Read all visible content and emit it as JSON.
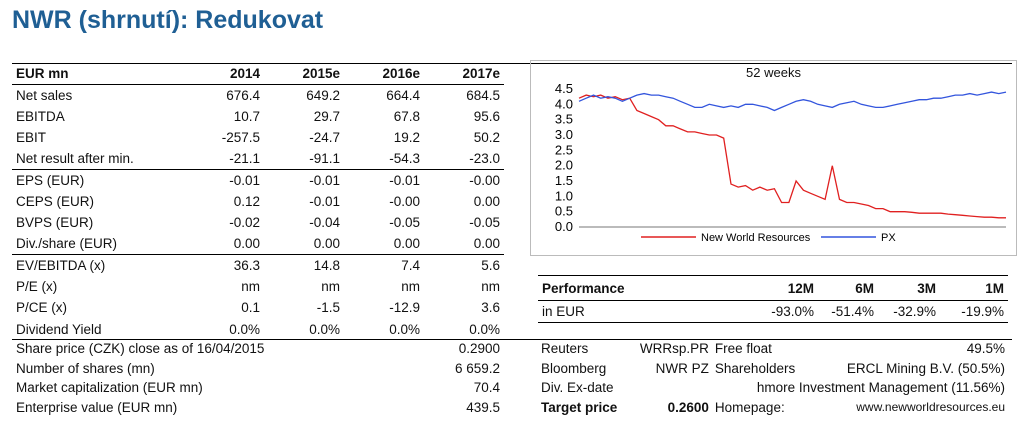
{
  "title": "NWR (shrnutí): Redukovat",
  "financials": {
    "headers": [
      "EUR mn",
      "2014",
      "2015e",
      "2016e",
      "2017e"
    ],
    "rows": [
      {
        "label": "Net sales",
        "values": [
          "676.4",
          "649.2",
          "664.4",
          "684.5"
        ],
        "sep": false
      },
      {
        "label": "EBITDA",
        "values": [
          "10.7",
          "29.7",
          "67.8",
          "95.6"
        ],
        "sep": false
      },
      {
        "label": "EBIT",
        "values": [
          "-257.5",
          "-24.7",
          "19.2",
          "50.2"
        ],
        "sep": false
      },
      {
        "label": "Net result after min.",
        "values": [
          "-21.1",
          "-91.1",
          "-54.3",
          "-23.0"
        ],
        "sep": false
      },
      {
        "label": "EPS (EUR)",
        "values": [
          "-0.01",
          "-0.01",
          "-0.01",
          "-0.00"
        ],
        "sep": true
      },
      {
        "label": "CEPS (EUR)",
        "values": [
          "0.12",
          "-0.01",
          "-0.00",
          "0.00"
        ],
        "sep": false
      },
      {
        "label": "BVPS (EUR)",
        "values": [
          "-0.02",
          "-0.04",
          "-0.05",
          "-0.05"
        ],
        "sep": false
      },
      {
        "label": "Div./share (EUR)",
        "values": [
          "0.00",
          "0.00",
          "0.00",
          "0.00"
        ],
        "sep": false
      },
      {
        "label": "EV/EBITDA (x)",
        "values": [
          "36.3",
          "14.8",
          "7.4",
          "5.6"
        ],
        "sep": true
      },
      {
        "label": "P/E (x)",
        "values": [
          "nm",
          "nm",
          "nm",
          "nm"
        ],
        "sep": false
      },
      {
        "label": "P/CE (x)",
        "values": [
          "0.1",
          "-1.5",
          "-12.9",
          "3.6"
        ],
        "sep": false
      },
      {
        "label": "Dividend Yield",
        "values": [
          "0.0%",
          "0.0%",
          "0.0%",
          "0.0%"
        ],
        "sep": false
      }
    ]
  },
  "summary": [
    {
      "label": "Share price (CZK) close as of 16/04/2015",
      "value": "0.2900"
    },
    {
      "label": "Number of shares (mn)",
      "value": "6 659.2"
    },
    {
      "label": "Market capitalization (EUR mn)",
      "value": "70.4"
    },
    {
      "label": "Enterprise value (EUR mn)",
      "value": "439.5"
    }
  ],
  "chart_data": {
    "type": "line",
    "title": "52 weeks",
    "ylim": [
      0,
      4.5
    ],
    "yticks": [
      "4.5",
      "4.0",
      "3.5",
      "3.0",
      "2.5",
      "2.0",
      "1.5",
      "1.0",
      "0.5",
      "0.0"
    ],
    "series": [
      {
        "name": "New World Resources",
        "color": "#e02020",
        "values": [
          4.2,
          4.3,
          4.25,
          4.3,
          4.2,
          4.25,
          4.15,
          4.2,
          3.8,
          3.7,
          3.6,
          3.5,
          3.3,
          3.3,
          3.2,
          3.1,
          3.1,
          3.05,
          3.0,
          3.0,
          2.9,
          1.4,
          1.3,
          1.35,
          1.2,
          1.3,
          1.2,
          1.25,
          0.8,
          0.8,
          1.5,
          1.2,
          1.1,
          1.0,
          0.9,
          2.0,
          0.9,
          0.8,
          0.8,
          0.75,
          0.7,
          0.6,
          0.6,
          0.5,
          0.5,
          0.5,
          0.48,
          0.45,
          0.45,
          0.45,
          0.45,
          0.42,
          0.4,
          0.38,
          0.36,
          0.34,
          0.32,
          0.32,
          0.3,
          0.3
        ]
      },
      {
        "name": "PX",
        "color": "#3355dd",
        "values": [
          4.1,
          4.2,
          4.3,
          4.2,
          4.25,
          4.2,
          4.1,
          4.2,
          4.3,
          4.35,
          4.3,
          4.3,
          4.25,
          4.2,
          4.1,
          4.0,
          3.9,
          3.9,
          4.0,
          3.95,
          3.9,
          3.95,
          3.9,
          4.0,
          4.0,
          3.95,
          3.9,
          3.8,
          3.9,
          4.0,
          4.1,
          4.15,
          4.1,
          4.0,
          3.95,
          3.9,
          4.0,
          4.05,
          4.1,
          4.0,
          3.95,
          3.9,
          3.9,
          3.95,
          4.0,
          4.05,
          4.1,
          4.15,
          4.15,
          4.2,
          4.2,
          4.25,
          4.3,
          4.3,
          4.35,
          4.3,
          4.35,
          4.4,
          4.35,
          4.4
        ]
      }
    ],
    "legend": [
      "New World Resources",
      "PX"
    ]
  },
  "performance": {
    "headers": [
      "Performance",
      "12M",
      "6M",
      "3M",
      "1M"
    ],
    "row": {
      "label": "in EUR",
      "values": [
        "-93.0%",
        "-51.4%",
        "-32.9%",
        "-19.9%"
      ]
    }
  },
  "info": {
    "reuters_label": "Reuters",
    "reuters_value": "WRRsp.PR",
    "bloomberg_label": "Bloomberg",
    "bloomberg_value": "NWR PZ",
    "divdate_label": "Div. Ex-date",
    "target_label": "Target price",
    "target_value": "0.2600",
    "freefloat_label": "Free float",
    "freefloat_value": "49.5%",
    "shareholders_label": "Shareholders",
    "shareholders_value": "ERCL Mining B.V. (50.5%)",
    "shareholder2_value": "hmore Investment Management (11.56%)",
    "homepage_label": "Homepage:",
    "homepage_value": "www.newworldresources.eu"
  }
}
